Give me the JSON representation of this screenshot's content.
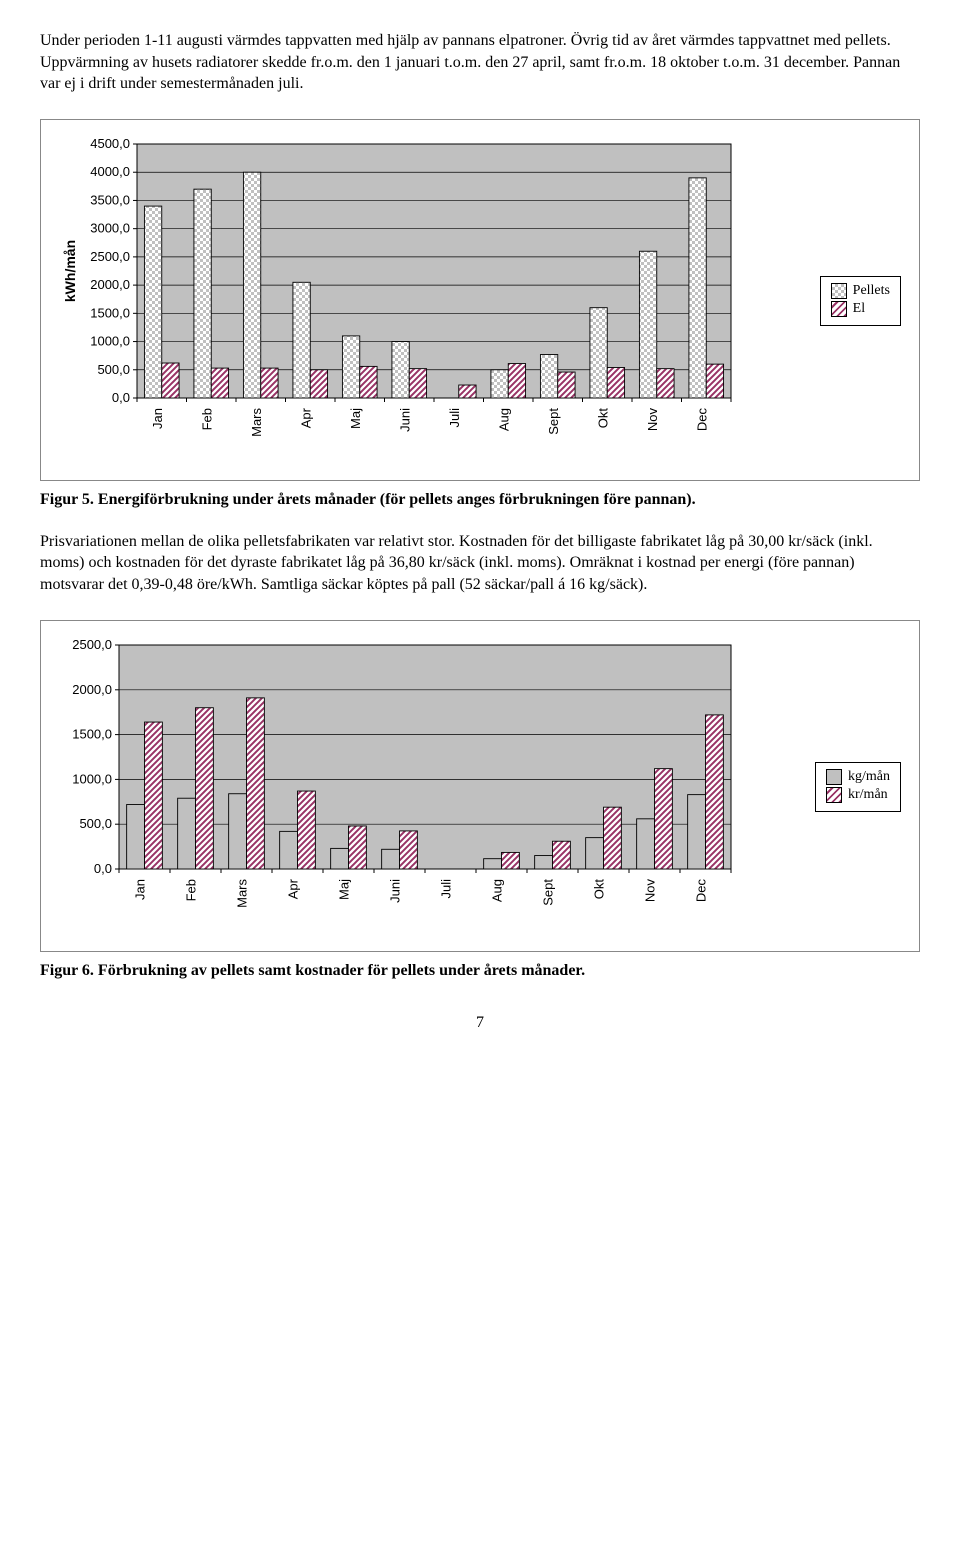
{
  "intro_paragraph": "Under perioden 1-11 augusti värmdes tappvatten med hjälp av pannans elpatroner. Övrig tid av året värmdes tappvattnet med pellets. Uppvärmning av husets radiatorer skedde fr.o.m. den 1 januari t.o.m. den 27 april, samt fr.o.m. 18 oktober t.o.m. 31 december. Pannan var ej i drift under semestermånaden juli.",
  "middle_paragraph": "Prisvariationen mellan de olika pelletsfabrikaten var relativt stor. Kostnaden för det billigaste fabrikatet låg på 30,00 kr/säck (inkl. moms) och kostnaden för det dyraste fabrikatet låg på 36,80 kr/säck (inkl. moms). Omräknat i kostnad per energi (före pannan) motsvarar det 0,39-0,48 öre/kWh. Samtliga säckar köptes på pall (52 säckar/pall á 16 kg/säck).",
  "page_number": "7",
  "chart1": {
    "type": "bar",
    "y_axis_label": "kWh/mån",
    "categories": [
      "Jan",
      "Feb",
      "Mars",
      "Apr",
      "Maj",
      "Juni",
      "Juli",
      "Aug",
      "Sept",
      "Okt",
      "Nov",
      "Dec"
    ],
    "series": [
      {
        "name": "Pellets",
        "pattern": "checker",
        "values": [
          3400,
          3700,
          4000,
          2050,
          1100,
          1000,
          0,
          500,
          770,
          1600,
          2600,
          3900
        ]
      },
      {
        "name": "El",
        "pattern": "diag",
        "values": [
          620,
          530,
          530,
          500,
          560,
          520,
          230,
          610,
          460,
          540,
          520,
          600
        ]
      }
    ],
    "ylim": [
      0,
      4500
    ],
    "ytick_step": 500,
    "bar_fill": "#ffffff",
    "bar_stroke": "#000000",
    "checker_color": "#c0c0c0",
    "diag_color": "#993366",
    "grid_color": "#000000",
    "background_color": "#c0c0c0",
    "tick_label_fontsize": 13,
    "axis_label_fontsize": 14,
    "bar_group_width": 0.7
  },
  "chart1_caption_bold": "Figur 5. Energiförbrukning under årets månader (för pellets anges förbrukningen före pannan).",
  "chart2": {
    "type": "bar",
    "categories": [
      "Jan",
      "Feb",
      "Mars",
      "Apr",
      "Maj",
      "Juni",
      "Juli",
      "Aug",
      "Sept",
      "Okt",
      "Nov",
      "Dec"
    ],
    "series": [
      {
        "name": "kg/mån",
        "pattern": "solid",
        "values": [
          720,
          790,
          840,
          420,
          230,
          220,
          0,
          115,
          150,
          350,
          560,
          830
        ]
      },
      {
        "name": "kr/mån",
        "pattern": "diag",
        "values": [
          1640,
          1800,
          1910,
          870,
          480,
          425,
          0,
          185,
          310,
          690,
          1120,
          1720
        ]
      }
    ],
    "ylim": [
      0,
      2500
    ],
    "ytick_step": 500,
    "solid_fill": "#c0c0c0",
    "bar_stroke": "#000000",
    "diag_color": "#993366",
    "grid_color": "#000000",
    "background_color": "#c0c0c0",
    "tick_label_fontsize": 13,
    "bar_group_width": 0.7
  },
  "chart2_caption_bold": "Figur 6. Förbrukning av pellets samt kostnader för pellets under årets månader."
}
